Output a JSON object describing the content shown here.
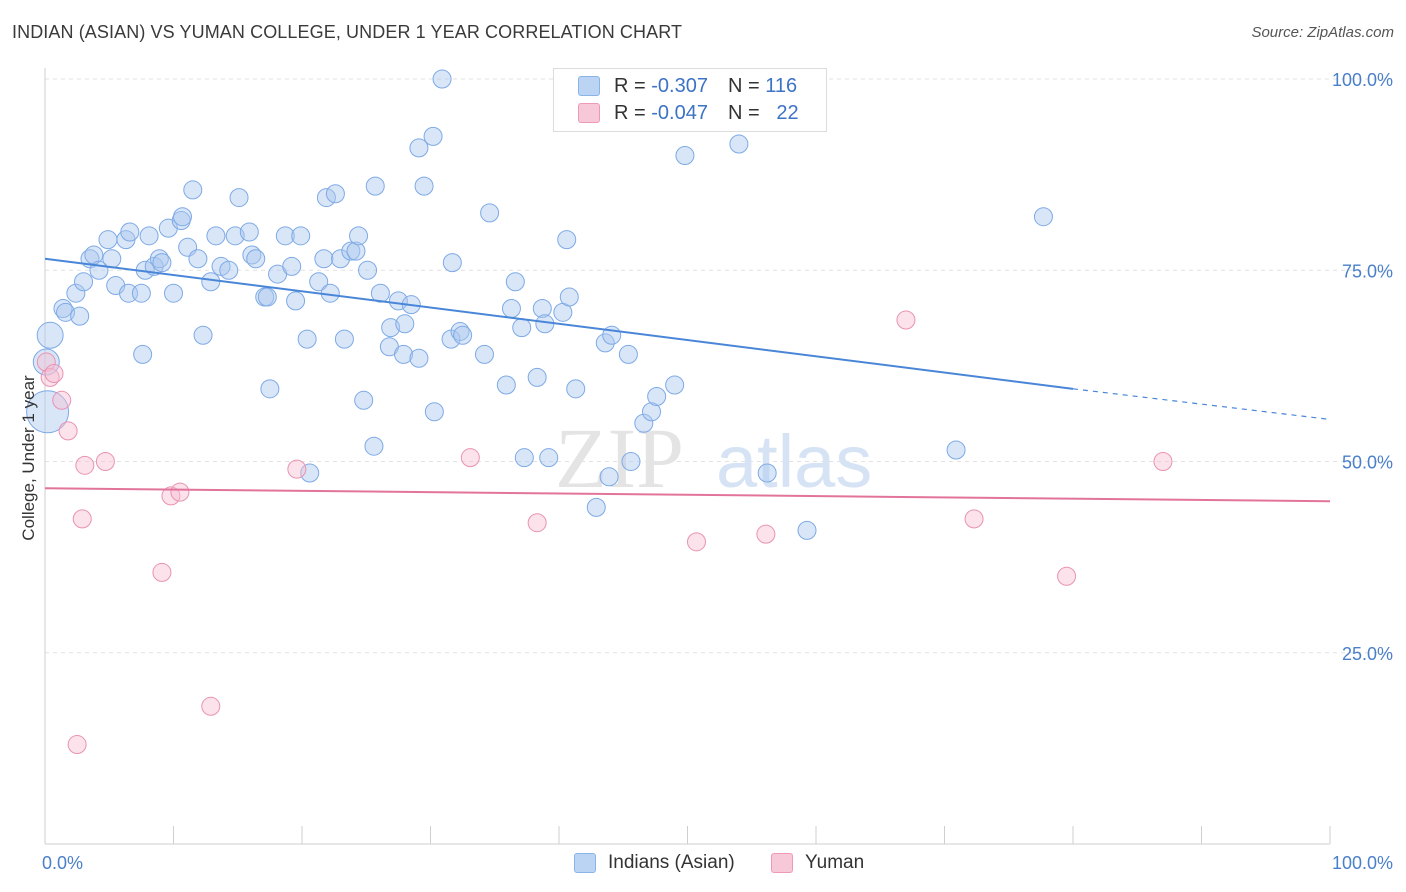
{
  "title": "INDIAN (ASIAN) VS YUMAN COLLEGE, UNDER 1 YEAR CORRELATION CHART",
  "source": "Source: ZipAtlas.com",
  "watermark": {
    "zip": "ZIP",
    "atlas": "atlas"
  },
  "legend": {
    "r_label": "R =",
    "n_label": "N =",
    "series": [
      {
        "name": "Indians (Asian)",
        "r": "-0.307",
        "n": "116",
        "color": "#8ab4e8",
        "fill": "#bcd4f3"
      },
      {
        "name": "Yuman",
        "r": "-0.047",
        "n": "22",
        "color": "#ee9ab7",
        "fill": "#f7c8d7"
      }
    ]
  },
  "chart_data": {
    "type": "scatter",
    "title": "INDIAN (ASIAN) VS YUMAN COLLEGE, UNDER 1 YEAR CORRELATION CHART",
    "xlabel": "",
    "ylabel": "College, Under 1 year",
    "xlim": [
      0,
      100
    ],
    "ylim": [
      0,
      100
    ],
    "x_tick_labels": {
      "left": "0.0%",
      "right": "100.0%"
    },
    "y_tick_labels": [
      {
        "value": 100,
        "label": "100.0%"
      },
      {
        "value": 75,
        "label": "75.0%"
      },
      {
        "value": 50,
        "label": "50.0%"
      },
      {
        "value": 25,
        "label": "25.0%"
      }
    ],
    "grid": true,
    "series": [
      {
        "name": "Indians (Asian)",
        "color": "#4a86d8",
        "trend": {
          "x0": 0,
          "y0": 76.5,
          "x1": 80,
          "y1": 59.5,
          "dash_to_x": 100,
          "dash_to_y": 55.5
        },
        "points": [
          [
            0.1,
            63,
            2
          ],
          [
            0.2,
            56.5,
            3
          ],
          [
            0.4,
            66.5,
            2
          ],
          [
            1.4,
            70,
            1
          ],
          [
            1.6,
            69.5,
            1
          ],
          [
            2.4,
            72,
            1
          ],
          [
            2.7,
            69,
            1
          ],
          [
            3.0,
            73.5,
            1
          ],
          [
            3.5,
            76.5,
            1
          ],
          [
            3.8,
            77,
            1
          ],
          [
            4.2,
            75,
            1
          ],
          [
            4.9,
            79,
            1
          ],
          [
            5.2,
            76.5,
            1
          ],
          [
            5.5,
            73,
            1
          ],
          [
            6.3,
            79,
            1
          ],
          [
            6.6,
            80,
            1
          ],
          [
            6.5,
            72,
            1
          ],
          [
            7.5,
            72,
            1
          ],
          [
            7.6,
            64,
            1
          ],
          [
            7.8,
            75,
            1
          ],
          [
            8.1,
            79.5,
            1
          ],
          [
            8.5,
            75.5,
            1
          ],
          [
            8.9,
            76.5,
            1
          ],
          [
            9.1,
            76,
            1
          ],
          [
            9.6,
            80.5,
            1
          ],
          [
            10.0,
            72,
            1
          ],
          [
            10.6,
            81.5,
            1
          ],
          [
            10.7,
            82,
            1
          ],
          [
            11.1,
            78,
            1
          ],
          [
            11.5,
            85.5,
            1
          ],
          [
            11.9,
            76.5,
            1
          ],
          [
            12.3,
            66.5,
            1
          ],
          [
            12.9,
            73.5,
            1
          ],
          [
            13.3,
            79.5,
            1
          ],
          [
            13.7,
            75.5,
            1
          ],
          [
            14.3,
            75,
            1
          ],
          [
            14.8,
            79.5,
            1
          ],
          [
            15.1,
            84.5,
            1
          ],
          [
            15.9,
            80,
            1
          ],
          [
            16.1,
            77,
            1
          ],
          [
            16.4,
            76.5,
            1
          ],
          [
            17.1,
            71.5,
            1
          ],
          [
            17.3,
            71.5,
            1
          ],
          [
            17.5,
            59.5,
            1
          ],
          [
            18.1,
            74.5,
            1
          ],
          [
            18.7,
            79.5,
            1
          ],
          [
            19.2,
            75.5,
            1
          ],
          [
            19.5,
            71,
            1
          ],
          [
            19.9,
            79.5,
            1
          ],
          [
            20.4,
            66,
            1
          ],
          [
            20.6,
            48.5,
            1
          ],
          [
            21.3,
            73.5,
            1
          ],
          [
            21.7,
            76.5,
            1
          ],
          [
            21.9,
            84.5,
            1
          ],
          [
            22.2,
            72,
            1
          ],
          [
            22.6,
            85,
            1
          ],
          [
            23.0,
            76.5,
            1
          ],
          [
            23.3,
            66,
            1
          ],
          [
            23.8,
            77.5,
            1
          ],
          [
            24.2,
            77.5,
            1
          ],
          [
            24.4,
            79.5,
            1
          ],
          [
            24.8,
            58,
            1
          ],
          [
            25.1,
            75,
            1
          ],
          [
            25.7,
            86,
            1
          ],
          [
            25.6,
            52,
            1
          ],
          [
            26.1,
            72,
            1
          ],
          [
            26.8,
            65,
            1
          ],
          [
            26.9,
            67.5,
            1
          ],
          [
            27.5,
            71,
            1
          ],
          [
            27.9,
            64,
            1
          ],
          [
            28.0,
            68,
            1
          ],
          [
            28.5,
            70.5,
            1
          ],
          [
            29.1,
            63.5,
            1
          ],
          [
            29.1,
            91,
            1
          ],
          [
            29.5,
            86,
            1
          ],
          [
            30.2,
            92.5,
            1
          ],
          [
            30.3,
            56.5,
            1
          ],
          [
            30.9,
            100,
            1
          ],
          [
            31.6,
            66,
            1
          ],
          [
            31.7,
            76,
            1
          ],
          [
            32.3,
            67,
            1
          ],
          [
            32.5,
            66.5,
            1
          ],
          [
            34.2,
            64,
            1
          ],
          [
            34.6,
            82.5,
            1
          ],
          [
            35.9,
            60,
            1
          ],
          [
            36.3,
            70,
            1
          ],
          [
            36.6,
            73.5,
            1
          ],
          [
            37.1,
            67.5,
            1
          ],
          [
            37.3,
            50.5,
            1
          ],
          [
            38.3,
            61,
            1
          ],
          [
            38.7,
            70,
            1
          ],
          [
            38.9,
            68,
            1
          ],
          [
            39.2,
            50.5,
            1
          ],
          [
            40.3,
            69.5,
            1
          ],
          [
            40.6,
            79,
            1
          ],
          [
            40.8,
            71.5,
            1
          ],
          [
            41.3,
            59.5,
            1
          ],
          [
            42.9,
            44,
            1
          ],
          [
            43.6,
            65.5,
            1
          ],
          [
            43.9,
            48,
            1
          ],
          [
            44.1,
            66.5,
            1
          ],
          [
            45.4,
            64,
            1
          ],
          [
            45.6,
            50,
            1
          ],
          [
            46.6,
            55,
            1
          ],
          [
            47.2,
            56.5,
            1
          ],
          [
            47.6,
            58.5,
            1
          ],
          [
            47.9,
            97,
            1
          ],
          [
            49.0,
            60,
            1
          ],
          [
            49.8,
            90,
            1
          ],
          [
            54.0,
            91.5,
            1
          ],
          [
            56.2,
            48.5,
            1
          ],
          [
            59.3,
            41,
            1
          ],
          [
            70.9,
            51.5,
            1
          ],
          [
            77.7,
            82,
            1
          ]
        ]
      },
      {
        "name": "Yuman",
        "color": "#e2749b",
        "trend": {
          "x0": 0,
          "y0": 46.5,
          "x1": 100,
          "y1": 44.8
        },
        "points": [
          [
            0.1,
            63,
            1
          ],
          [
            0.4,
            61,
            1
          ],
          [
            0.7,
            61.5,
            1
          ],
          [
            1.3,
            58,
            1
          ],
          [
            1.8,
            54,
            1
          ],
          [
            2.9,
            42.5,
            1
          ],
          [
            3.1,
            49.5,
            1
          ],
          [
            4.7,
            50,
            1
          ],
          [
            2.5,
            13,
            1
          ],
          [
            9.1,
            35.5,
            1
          ],
          [
            9.8,
            45.5,
            1
          ],
          [
            10.5,
            46,
            1
          ],
          [
            12.9,
            18,
            1
          ],
          [
            19.6,
            49,
            1
          ],
          [
            33.1,
            50.5,
            1
          ],
          [
            38.3,
            42,
            1
          ],
          [
            50.7,
            39.5,
            1
          ],
          [
            56.1,
            40.5,
            1
          ],
          [
            67.0,
            68.5,
            1
          ],
          [
            72.3,
            42.5,
            1
          ],
          [
            79.5,
            35,
            1
          ],
          [
            87.0,
            50,
            1
          ]
        ]
      }
    ]
  }
}
